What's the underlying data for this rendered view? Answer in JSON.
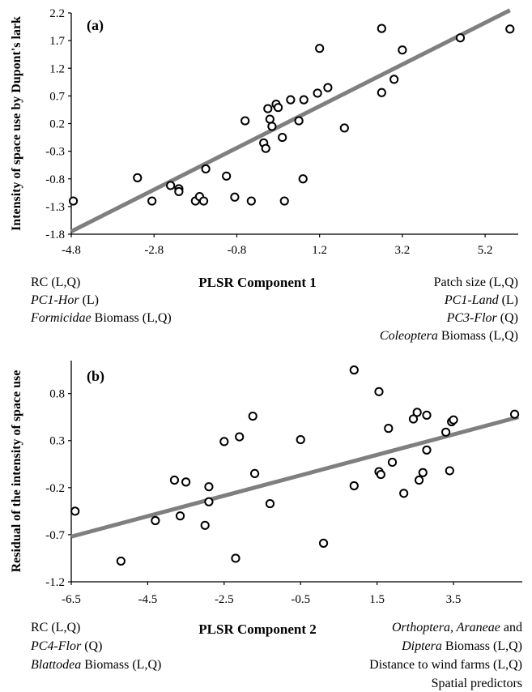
{
  "chart_data": [
    {
      "type": "scatter",
      "panel_label": "(a)",
      "xlabel": "PLSR Component 1",
      "ylabel": "Intensity of space use by Dupont's lark",
      "xlim": [
        -4.8,
        6.0
      ],
      "ylim": [
        -1.8,
        2.2
      ],
      "xticks": [
        "-4.8",
        "-2.8",
        "-0.8",
        "1.2",
        "3.2",
        "5.2"
      ],
      "yticks": [
        "-1.8",
        "-1.3",
        "-0.8",
        "-0.3",
        "0.2",
        "0.7",
        "1.2",
        "1.7",
        "2.2"
      ],
      "trendline": [
        [
          -4.8,
          -1.75
        ],
        [
          5.8,
          2.25
        ]
      ],
      "points": [
        [
          -4.75,
          -1.2
        ],
        [
          -3.2,
          -0.78
        ],
        [
          -2.85,
          -1.2
        ],
        [
          -2.4,
          -0.92
        ],
        [
          -2.2,
          -0.98
        ],
        [
          -2.2,
          -1.03
        ],
        [
          -1.8,
          -1.2
        ],
        [
          -1.7,
          -1.12
        ],
        [
          -1.6,
          -1.2
        ],
        [
          -1.55,
          -0.62
        ],
        [
          -1.05,
          -0.75
        ],
        [
          -0.85,
          -1.13
        ],
        [
          -0.6,
          0.25
        ],
        [
          -0.45,
          -1.2
        ],
        [
          -0.15,
          -0.15
        ],
        [
          -0.1,
          -0.25
        ],
        [
          -0.05,
          0.47
        ],
        [
          0.0,
          0.28
        ],
        [
          0.05,
          0.15
        ],
        [
          0.15,
          0.55
        ],
        [
          0.2,
          0.49
        ],
        [
          0.3,
          -0.05
        ],
        [
          0.35,
          -1.2
        ],
        [
          0.5,
          0.63
        ],
        [
          0.7,
          0.25
        ],
        [
          0.8,
          -0.8
        ],
        [
          0.82,
          0.63
        ],
        [
          1.15,
          0.75
        ],
        [
          1.2,
          1.56
        ],
        [
          1.4,
          0.85
        ],
        [
          1.8,
          0.12
        ],
        [
          2.7,
          1.92
        ],
        [
          2.7,
          0.76
        ],
        [
          3.0,
          1.0
        ],
        [
          3.2,
          1.53
        ],
        [
          4.6,
          1.75
        ],
        [
          5.8,
          1.91
        ]
      ],
      "annotations_left": [
        {
          "parts": [
            {
              "text": "RC (L,Q)",
              "italic": false
            }
          ]
        },
        {
          "parts": [
            {
              "text": "PC1-Hor",
              "italic": true
            },
            {
              "text": " (L)",
              "italic": false
            }
          ]
        },
        {
          "parts": [
            {
              "text": "Formicidae",
              "italic": true
            },
            {
              "text": " Biomass (L,Q)",
              "italic": false
            }
          ]
        }
      ],
      "annotations_right": [
        {
          "parts": [
            {
              "text": "Patch size (L,Q)",
              "italic": false
            }
          ]
        },
        {
          "parts": [
            {
              "text": "PC1-Land",
              "italic": true
            },
            {
              "text": " (L)",
              "italic": false
            }
          ]
        },
        {
          "parts": [
            {
              "text": "PC3-Flor",
              "italic": true
            },
            {
              "text": " (Q)",
              "italic": false
            }
          ]
        },
        {
          "parts": [
            {
              "text": "Coleoptera",
              "italic": true
            },
            {
              "text": " Biomass (L,Q)",
              "italic": false
            }
          ]
        }
      ]
    },
    {
      "type": "scatter",
      "panel_label": "(b)",
      "xlabel": "PLSR Component 2",
      "ylabel": "Residual of the intensity of space use",
      "xlim": [
        -6.5,
        5.3
      ],
      "ylim": [
        -1.2,
        1.15
      ],
      "xticks": [
        "-6.5",
        "-4.5",
        "-2.5",
        "-0.5",
        "1.5",
        "3.5"
      ],
      "yticks": [
        "-1.2",
        "-0.7",
        "-0.2",
        "0.3",
        "0.8"
      ],
      "trendline": [
        [
          -6.5,
          -0.72
        ],
        [
          5.2,
          0.55
        ]
      ],
      "points": [
        [
          -6.4,
          -0.45
        ],
        [
          -5.2,
          -0.98
        ],
        [
          -4.3,
          -0.55
        ],
        [
          -3.8,
          -0.12
        ],
        [
          -3.65,
          -0.5
        ],
        [
          -3.5,
          -0.14
        ],
        [
          -3.0,
          -0.6
        ],
        [
          -2.9,
          -0.35
        ],
        [
          -2.9,
          -0.19
        ],
        [
          -2.5,
          0.29
        ],
        [
          -2.2,
          -0.95
        ],
        [
          -2.1,
          0.34
        ],
        [
          -1.75,
          0.56
        ],
        [
          -1.7,
          -0.05
        ],
        [
          -1.3,
          -0.37
        ],
        [
          -0.5,
          0.31
        ],
        [
          0.1,
          -0.79
        ],
        [
          0.9,
          1.05
        ],
        [
          0.9,
          -0.18
        ],
        [
          1.55,
          0.82
        ],
        [
          1.55,
          -0.03
        ],
        [
          1.6,
          -0.06
        ],
        [
          1.8,
          0.43
        ],
        [
          1.9,
          0.07
        ],
        [
          2.2,
          -0.26
        ],
        [
          2.45,
          0.53
        ],
        [
          2.55,
          0.6
        ],
        [
          2.6,
          -0.12
        ],
        [
          2.7,
          -0.04
        ],
        [
          2.8,
          0.57
        ],
        [
          2.8,
          0.2
        ],
        [
          3.3,
          0.39
        ],
        [
          3.4,
          -0.02
        ],
        [
          3.45,
          0.5
        ],
        [
          3.5,
          0.52
        ],
        [
          5.1,
          0.58
        ]
      ],
      "annotations_left": [
        {
          "parts": [
            {
              "text": "RC (L,Q)",
              "italic": false
            }
          ]
        },
        {
          "parts": [
            {
              "text": "PC4-Flor",
              "italic": true
            },
            {
              "text": " (Q)",
              "italic": false
            }
          ]
        },
        {
          "parts": [
            {
              "text": "Blattodea",
              "italic": true
            },
            {
              "text": " Biomass (L,Q)",
              "italic": false
            }
          ]
        }
      ],
      "annotations_right": [
        {
          "parts": [
            {
              "text": "Orthoptera, Araneae",
              "italic": true
            },
            {
              "text": " and",
              "italic": false
            }
          ]
        },
        {
          "parts": [
            {
              "text": "Diptera",
              "italic": true
            },
            {
              "text": " Biomass (L,Q)",
              "italic": false
            }
          ]
        },
        {
          "parts": [
            {
              "text": "Distance to wind farms (L,Q)",
              "italic": false
            }
          ]
        },
        {
          "parts": [
            {
              "text": "Spatial predictors",
              "italic": false
            }
          ]
        }
      ]
    }
  ],
  "colors": {
    "trendline": "#7f7f7f",
    "marker": "#000000",
    "axis": "#000000"
  }
}
